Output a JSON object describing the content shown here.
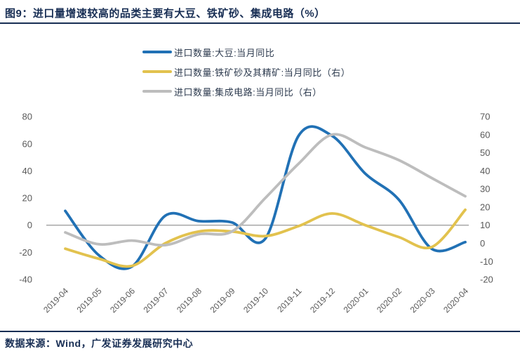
{
  "header": {
    "title": "图9：进口量增速较高的品类主要有大豆、铁矿砂、集成电路（%）"
  },
  "footer": {
    "source": "数据来源：Wind，广发证券发展研究中心"
  },
  "colors": {
    "title_navy": "#182e54",
    "axis_text_gray": "#595959",
    "gridline_gray": "#7f7f7f",
    "soybean_blue": "#2171b5",
    "iron_ore_yellow": "#e2c24e",
    "ic_gray": "#bdbdbd"
  },
  "chart_data": {
    "type": "line",
    "title": "图9：进口量增速较高的品类主要有大豆、铁矿砂、集成电路（%）",
    "categories": [
      "2019-04",
      "2019-05",
      "2019-06",
      "2019-07",
      "2019-08",
      "2019-09",
      "2019-10",
      "2019-11",
      "2019-12",
      "2020-01",
      "2020-02",
      "2020-03",
      "2020-04"
    ],
    "left_axis": {
      "ticks": [
        80,
        60,
        40,
        20,
        0,
        -20,
        -40
      ],
      "range": [
        -40,
        80
      ]
    },
    "right_axis": {
      "ticks": [
        70,
        60,
        50,
        40,
        30,
        20,
        10,
        0,
        -10,
        -20
      ],
      "range": [
        -20,
        70
      ]
    },
    "grid": "single horizontal gridline at left-axis 0",
    "legend_position": "top-center",
    "series": [
      {
        "name": "进口数量:大豆:当月同比",
        "axis": "left",
        "color": "#2171b5",
        "values": [
          10.5,
          -22,
          -30.5,
          7,
          3,
          2,
          -10,
          66,
          66,
          38,
          19,
          -17.5,
          -12.5
        ]
      },
      {
        "name": "进口数量:铁矿砂及其精矿:当月同比（右）",
        "axis": "right",
        "color": "#e2c24e",
        "values": [
          -3,
          -8.5,
          -12.5,
          0,
          6.5,
          6.5,
          4,
          9.5,
          16.5,
          10,
          3.5,
          -2,
          18.5
        ]
      },
      {
        "name": "进口数量:集成电路:当月同比（右）",
        "axis": "right",
        "color": "#bdbdbd",
        "values": [
          6,
          -0.5,
          1.5,
          -1,
          5,
          6.5,
          25,
          44,
          60,
          53,
          46,
          36,
          26
        ]
      }
    ]
  }
}
